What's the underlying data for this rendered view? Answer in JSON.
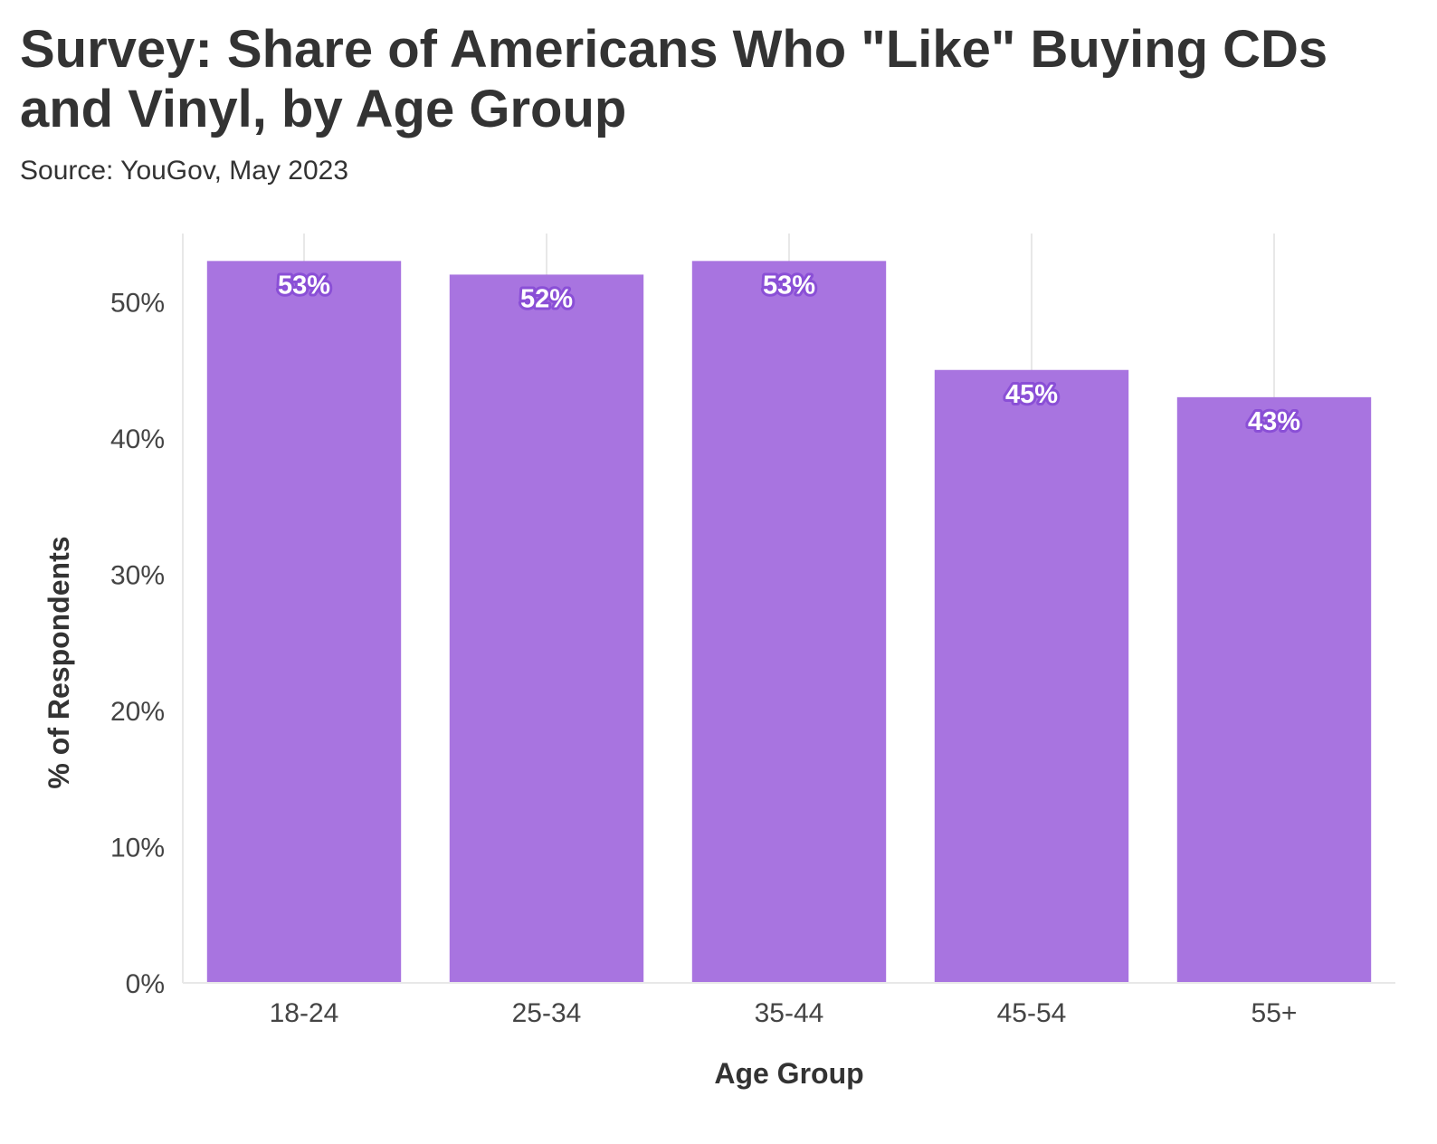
{
  "title": "Survey: Share of Americans Who \"Like\" Buying CDs and Vinyl, by Age Group",
  "subtitle": "Source: YouGov, May 2023",
  "colors": {
    "bar": "#a874e0",
    "label_outline": "#8a4fd6",
    "grid": "#e8e8e8",
    "text": "#333333"
  },
  "chart_data": {
    "type": "bar",
    "categories": [
      "18-24",
      "25-34",
      "35-44",
      "45-54",
      "55+"
    ],
    "values": [
      53,
      52,
      53,
      45,
      43
    ],
    "data_labels": [
      "53%",
      "52%",
      "53%",
      "45%",
      "43%"
    ],
    "xlabel": "Age Group",
    "ylabel": "% of Respondents",
    "ylim": [
      0,
      55
    ],
    "yticks": [
      0,
      10,
      20,
      30,
      40,
      50
    ],
    "ytick_labels": [
      "0%",
      "10%",
      "20%",
      "30%",
      "40%",
      "50%"
    ],
    "grid": true,
    "legend": "none"
  }
}
